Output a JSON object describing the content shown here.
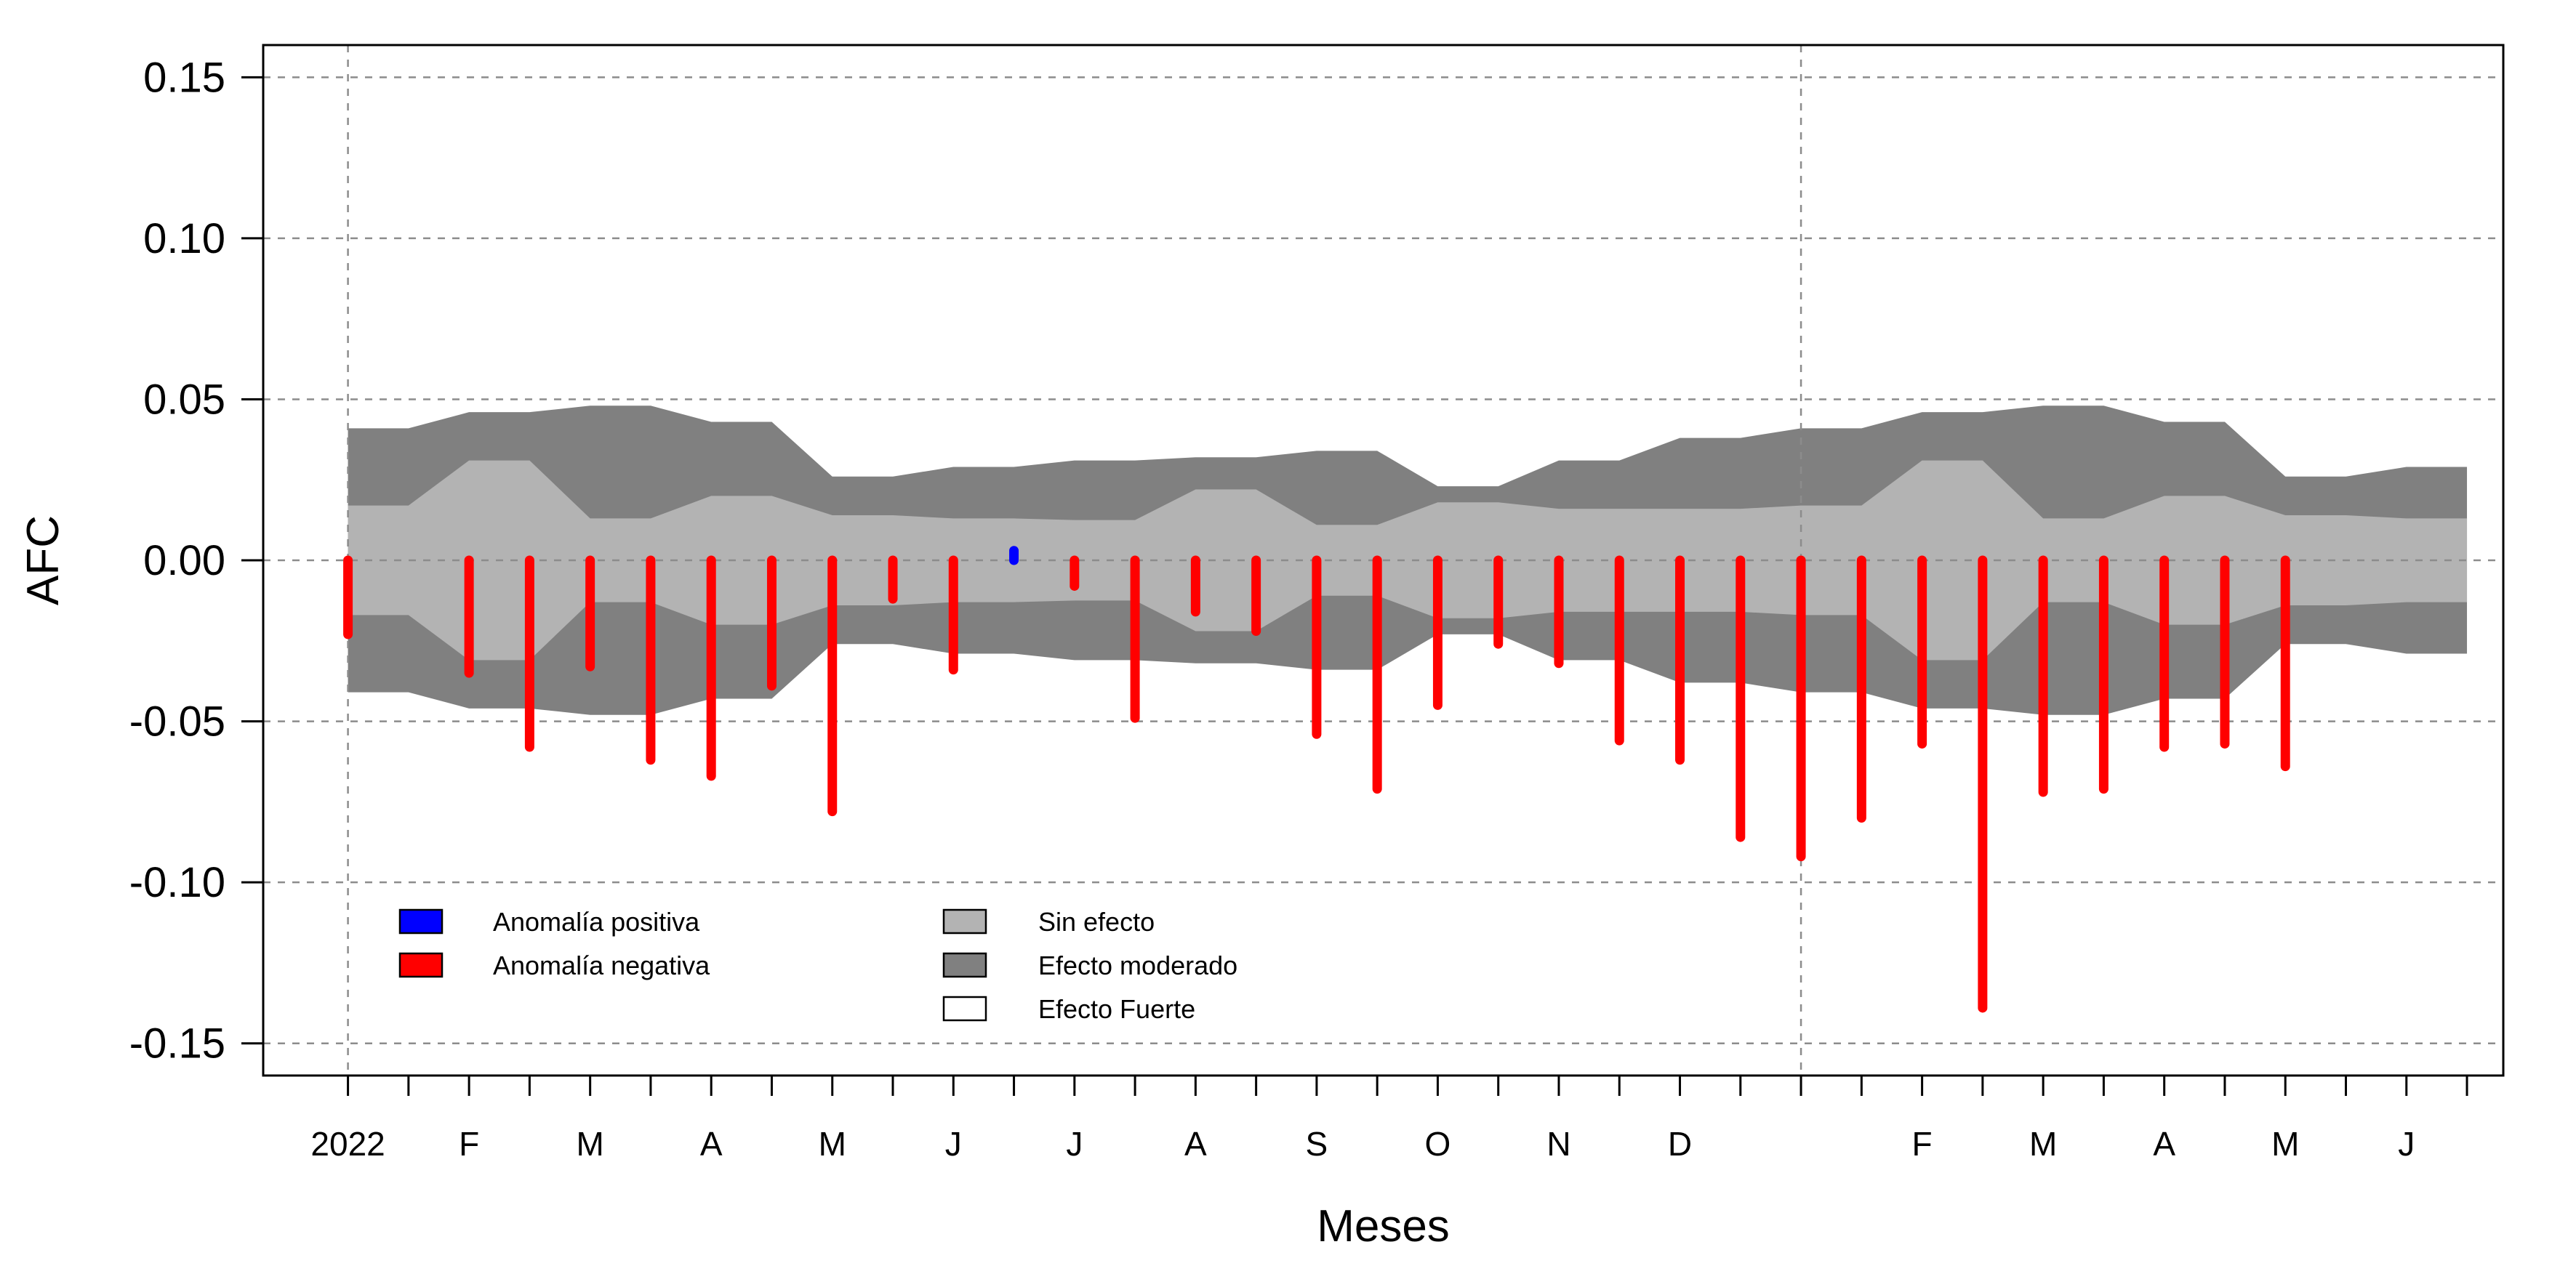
{
  "chart_data": {
    "type": "bar",
    "xlabel": "Meses",
    "ylabel": "AFC",
    "ylim": [
      -0.16,
      0.16
    ],
    "y_ticks": [
      "0.15",
      "0.10",
      "0.05",
      "0.00",
      "-0.05",
      "-0.10",
      "-0.15"
    ],
    "y_tick_values": [
      0.15,
      0.1,
      0.05,
      0.0,
      -0.05,
      -0.1,
      -0.15
    ],
    "x_tick_labels": [
      "2022",
      "F",
      "M",
      "A",
      "M",
      "J",
      "J",
      "A",
      "S",
      "O",
      "N",
      "D",
      "F",
      "M",
      "A",
      "M",
      "J"
    ],
    "x_tick_label_positions": [
      1,
      3,
      5,
      7,
      9,
      11,
      13,
      15,
      17,
      19,
      21,
      23,
      27,
      29,
      31,
      33,
      35
    ],
    "x_range": [
      -0.4,
      36.6
    ],
    "vertical_grid_at": [
      1,
      25
    ],
    "grid": true,
    "periods": [
      1,
      2,
      3,
      4,
      5,
      6,
      7,
      8,
      9,
      10,
      11,
      12,
      13,
      14,
      15,
      16,
      17,
      18,
      19,
      20,
      21,
      22,
      23,
      24,
      25,
      26,
      27,
      28,
      29,
      30,
      31,
      32,
      33,
      34,
      35,
      36
    ],
    "bands": {
      "sin_efecto_upper": [
        0.017,
        0.017,
        0.031,
        0.031,
        0.013,
        0.013,
        0.02,
        0.02,
        0.014,
        0.014,
        0.013,
        0.013,
        0.0125,
        0.0125,
        0.022,
        0.022,
        0.011,
        0.011,
        0.018,
        0.018,
        0.016,
        0.016,
        0.016,
        0.016,
        0.017,
        0.017,
        0.031,
        0.031,
        0.013,
        0.013,
        0.02,
        0.02,
        0.014,
        0.014,
        0.013,
        0.013
      ],
      "sin_efecto_lower": [
        -0.017,
        -0.017,
        -0.031,
        -0.031,
        -0.013,
        -0.013,
        -0.02,
        -0.02,
        -0.014,
        -0.014,
        -0.013,
        -0.013,
        -0.0125,
        -0.0125,
        -0.022,
        -0.022,
        -0.011,
        -0.011,
        -0.018,
        -0.018,
        -0.016,
        -0.016,
        -0.016,
        -0.016,
        -0.017,
        -0.017,
        -0.031,
        -0.031,
        -0.013,
        -0.013,
        -0.02,
        -0.02,
        -0.014,
        -0.014,
        -0.013,
        -0.013
      ],
      "efecto_moderado_upper": [
        0.041,
        0.041,
        0.046,
        0.046,
        0.048,
        0.048,
        0.043,
        0.043,
        0.026,
        0.026,
        0.029,
        0.029,
        0.031,
        0.031,
        0.032,
        0.032,
        0.034,
        0.034,
        0.023,
        0.023,
        0.031,
        0.031,
        0.038,
        0.038,
        0.041,
        0.041,
        0.046,
        0.046,
        0.048,
        0.048,
        0.043,
        0.043,
        0.026,
        0.026,
        0.029,
        0.029
      ],
      "efecto_moderado_lower": [
        -0.041,
        -0.041,
        -0.046,
        -0.046,
        -0.048,
        -0.048,
        -0.043,
        -0.043,
        -0.026,
        -0.026,
        -0.029,
        -0.029,
        -0.031,
        -0.031,
        -0.032,
        -0.032,
        -0.034,
        -0.034,
        -0.023,
        -0.023,
        -0.031,
        -0.031,
        -0.038,
        -0.038,
        -0.041,
        -0.041,
        -0.046,
        -0.046,
        -0.048,
        -0.048,
        -0.043,
        -0.043,
        -0.026,
        -0.026,
        -0.029,
        -0.029
      ]
    },
    "series": [
      {
        "name": "Anomalía negativa",
        "color": "#ff0000",
        "values": [
          -0.023,
          null,
          -0.035,
          -0.058,
          -0.033,
          -0.062,
          -0.067,
          -0.039,
          -0.078,
          -0.012,
          -0.034,
          null,
          -0.008,
          -0.049,
          -0.016,
          -0.022,
          -0.054,
          -0.071,
          -0.045,
          -0.026,
          -0.032,
          -0.056,
          -0.062,
          -0.086,
          -0.092,
          -0.08,
          -0.057,
          -0.139,
          -0.072,
          -0.071,
          -0.058,
          -0.057,
          -0.064,
          null,
          null,
          null
        ]
      },
      {
        "name": "Anomalía positiva",
        "color": "#0000ff",
        "values": [
          null,
          null,
          null,
          null,
          null,
          null,
          null,
          null,
          null,
          null,
          null,
          0.003,
          null,
          null,
          null,
          null,
          null,
          null,
          null,
          null,
          null,
          null,
          null,
          null,
          null,
          null,
          null,
          null,
          null,
          null,
          null,
          null,
          null,
          null,
          null,
          null
        ]
      }
    ],
    "legend": {
      "placement": "bottom-left",
      "anomalies": [
        {
          "label": "Anomalía positiva",
          "color": "#0000ff"
        },
        {
          "label": "Anomalía negativa",
          "color": "#ff0000"
        }
      ],
      "effects": [
        {
          "label": "Sin efecto",
          "color": "#b3b3b3"
        },
        {
          "label": "Efecto moderado",
          "color": "#808080"
        },
        {
          "label": "Efecto Fuerte",
          "color": "#ffffff"
        }
      ]
    },
    "colors": {
      "sin_efecto": "#b3b3b3",
      "efecto_moderado": "#808080",
      "grid": "#8c8c8c"
    }
  }
}
